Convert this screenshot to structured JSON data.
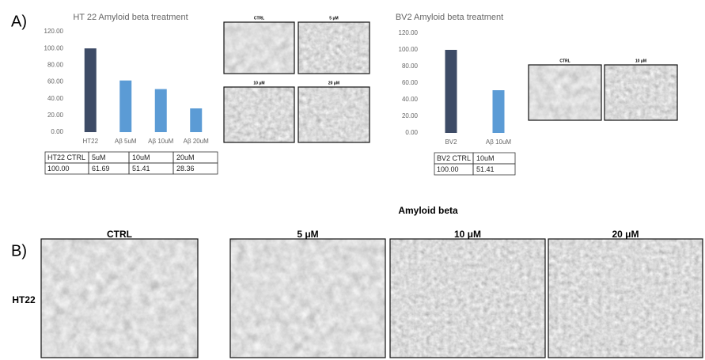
{
  "panel_labels": [
    "A)",
    "B)"
  ],
  "chart_data": [
    {
      "type": "bar",
      "title": "HT 22 Amyloid beta treatment",
      "categories": [
        "HT22",
        "Aβ 5uM",
        "Aβ 10uM",
        "Aβ 20uM"
      ],
      "values": [
        100,
        61.69,
        51.41,
        28.36
      ],
      "colors": [
        "#3d4b66",
        "#5b9bd5",
        "#5b9bd5",
        "#5b9bd5"
      ],
      "ylim": [
        0,
        120
      ],
      "yticks": [
        {
          "value": 0,
          "label": "0.00"
        },
        {
          "value": 20,
          "label": "20.00"
        },
        {
          "value": 40,
          "label": "40.00"
        },
        {
          "value": 60,
          "label": "60.00"
        },
        {
          "value": 80,
          "label": "80.00"
        },
        {
          "value": 100,
          "label": "100.00"
        },
        {
          "value": 120,
          "label": "120.00"
        }
      ],
      "grid": false
    },
    {
      "type": "bar",
      "title": "BV2 Amyloid beta treatment",
      "categories": [
        "BV2",
        "Aβ 10uM"
      ],
      "values": [
        100,
        51.41
      ],
      "colors": [
        "#3d4b66",
        "#5b9bd5"
      ],
      "ylim": [
        0,
        120
      ],
      "yticks": [
        {
          "value": 0,
          "label": "0.00"
        },
        {
          "value": 20,
          "label": "20.00"
        },
        {
          "value": 40,
          "label": "40.00"
        },
        {
          "value": 60,
          "label": "60.00"
        },
        {
          "value": 80,
          "label": "80.00"
        },
        {
          "value": 100,
          "label": "100.00"
        },
        {
          "value": 120,
          "label": "120.00"
        }
      ],
      "grid": false
    }
  ],
  "tables": [
    {
      "rows": [
        [
          "HT22 CTRL",
          "5uM",
          "10uM",
          "20uM"
        ],
        [
          "100.00",
          "61.69",
          "51.41",
          "28.36"
        ]
      ]
    },
    {
      "rows": [
        [
          "BV2 CTRL",
          "10uM"
        ],
        [
          "100.00",
          "51.41"
        ]
      ]
    }
  ],
  "micrographs_a_ht22": [
    "CTRL",
    "5 μM",
    "10 μM",
    "20 μM"
  ],
  "micrographs_a_bv2": [
    "CTRL",
    "10 μM"
  ],
  "panel_b": {
    "title": "Amyloid beta",
    "row_label": "HT22",
    "columns": [
      "CTRL",
      "5 μM",
      "10 μM",
      "20 μM"
    ]
  }
}
